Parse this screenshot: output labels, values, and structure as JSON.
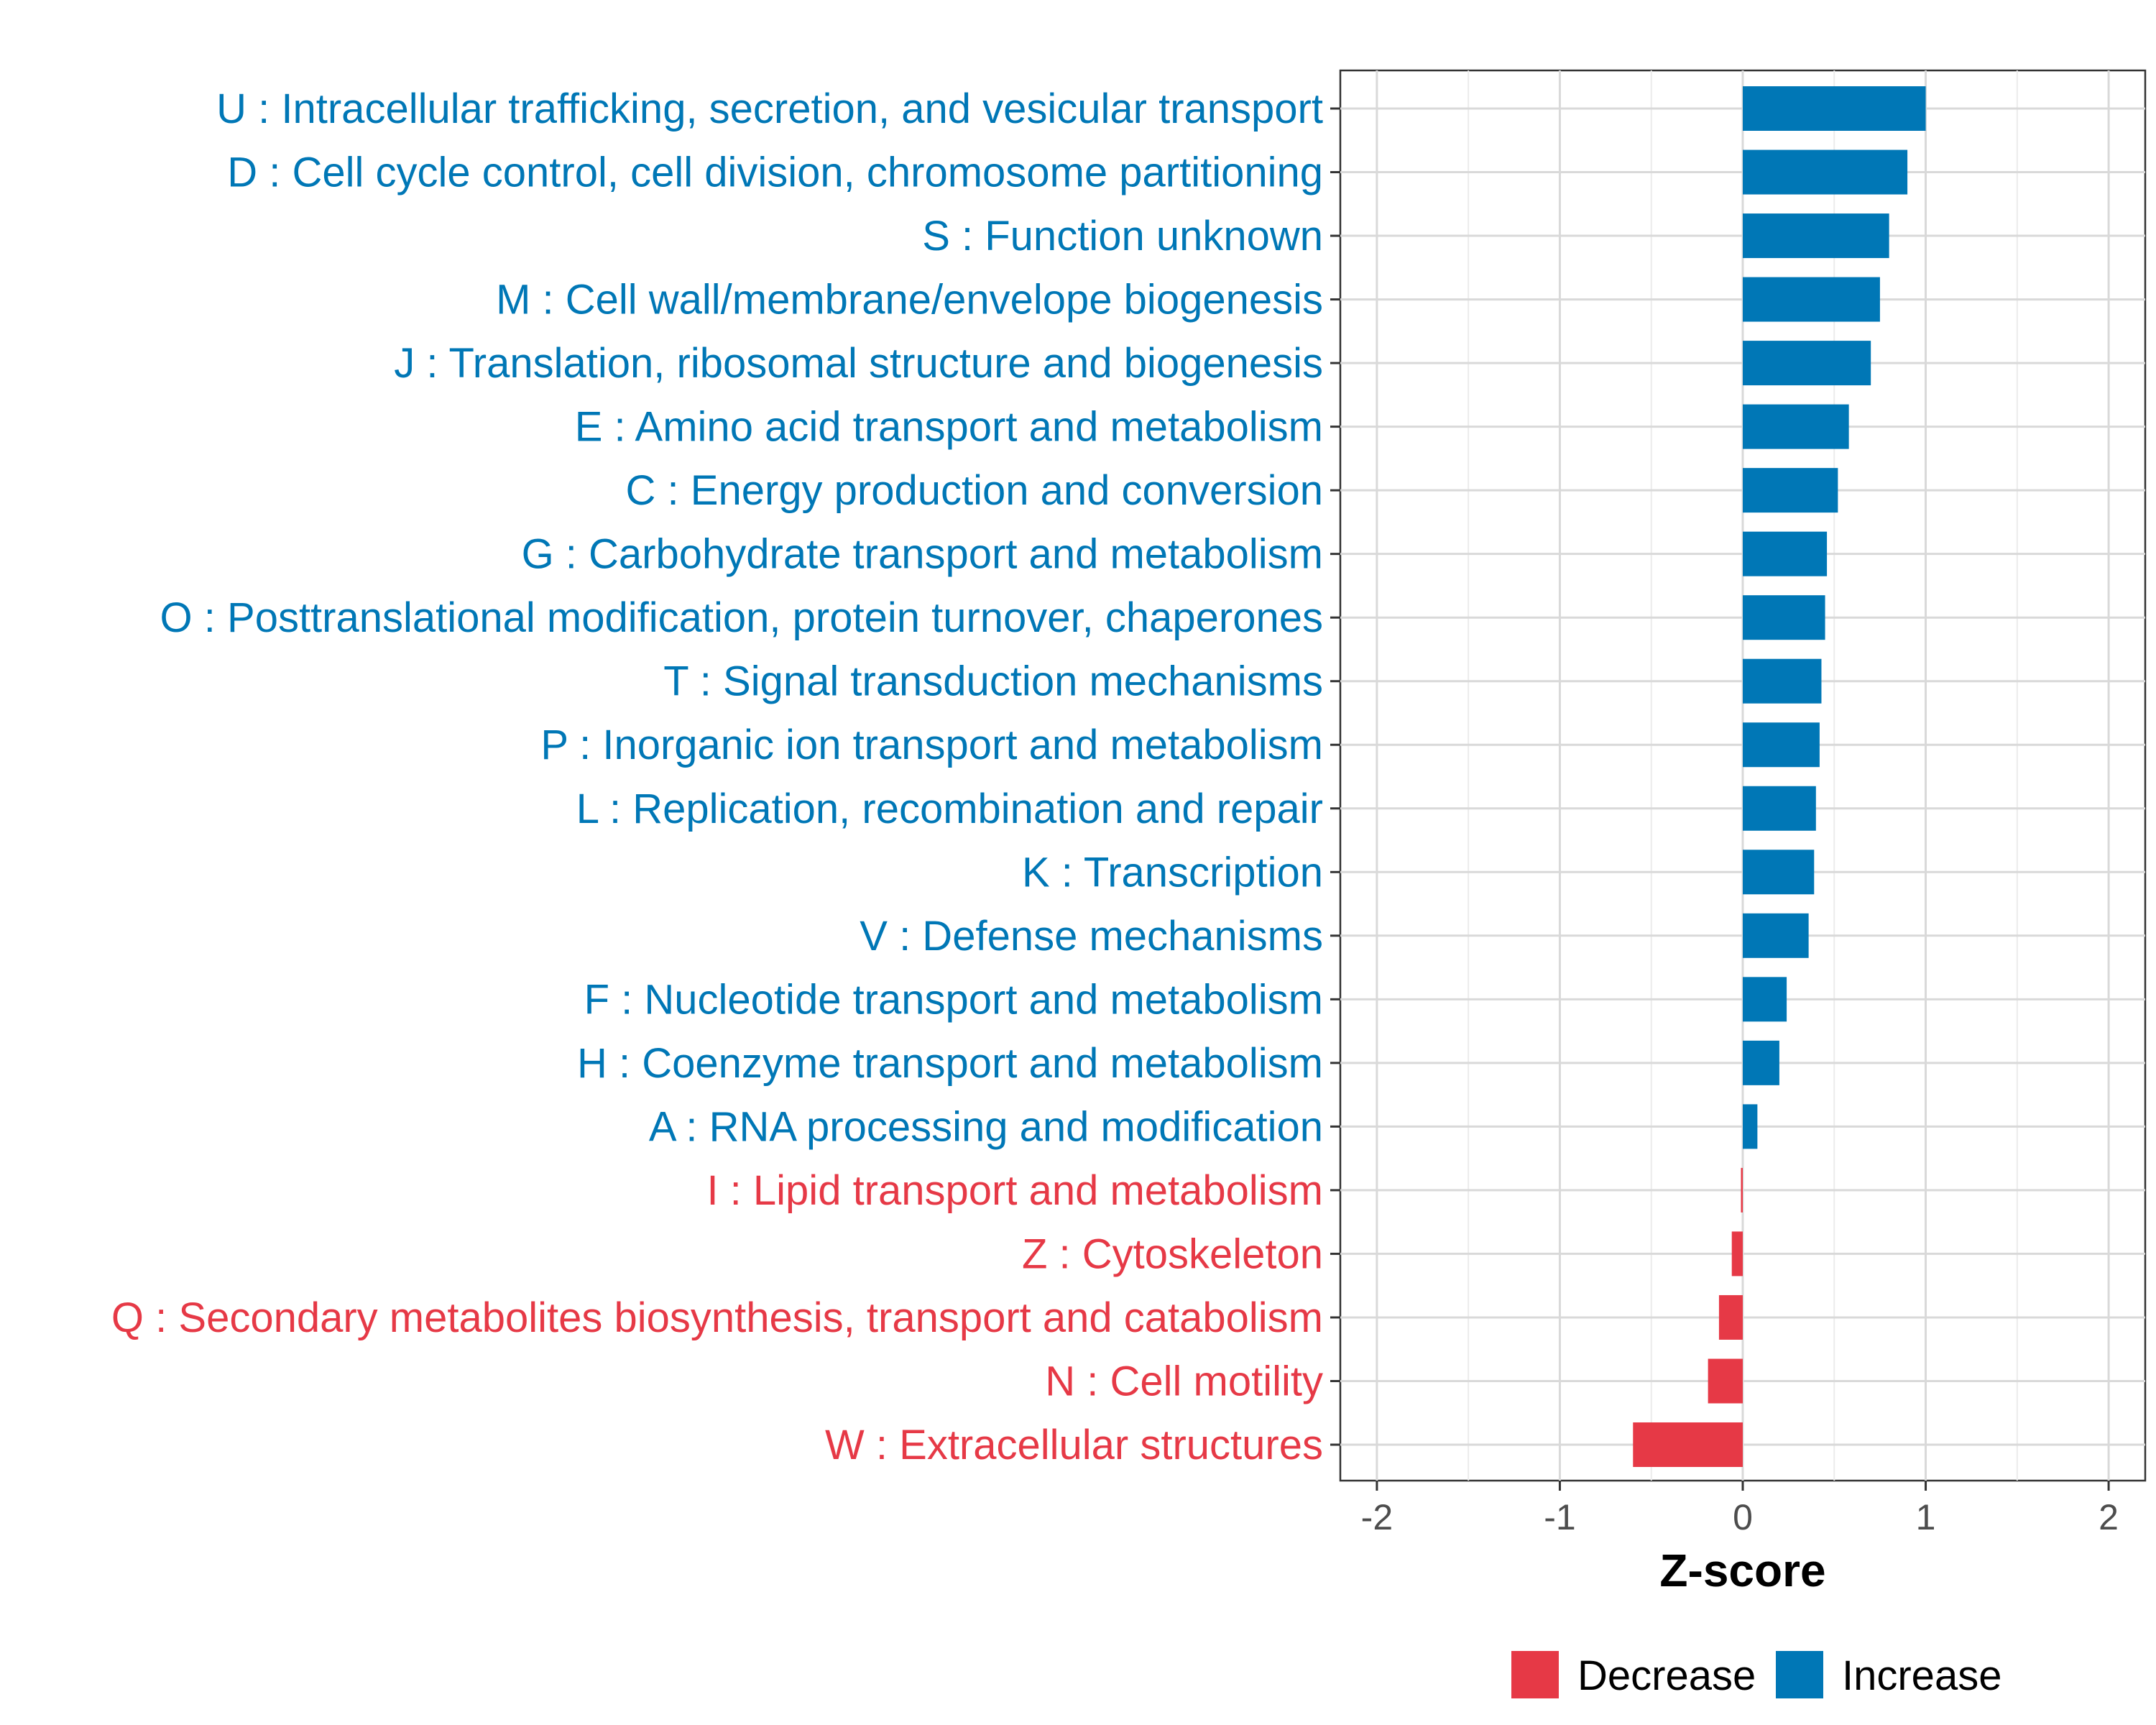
{
  "chart_data": {
    "type": "bar",
    "orientation": "horizontal",
    "xlabel": "Z-score",
    "xlim": [
      -2.2,
      2.2
    ],
    "xticks": [
      -2,
      -1,
      0,
      1,
      2
    ],
    "xtick_labels": [
      "-2",
      "-1",
      "0",
      "1",
      "2"
    ],
    "grid": true,
    "legend_position": "bottom",
    "colors": {
      "Decrease": "#E63946",
      "Increase": "#0077B6"
    },
    "legend": [
      {
        "label": "Decrease",
        "color": "#E63946"
      },
      {
        "label": "Increase",
        "color": "#0077B6"
      }
    ],
    "categories": [
      "U : Intracellular trafficking, secretion, and vesicular transport",
      "D : Cell cycle control, cell division, chromosome partitioning",
      "S : Function unknown",
      "M : Cell wall/membrane/envelope biogenesis",
      "J : Translation, ribosomal structure and biogenesis",
      "E : Amino acid transport and metabolism",
      "C : Energy production and conversion",
      "G : Carbohydrate transport and metabolism",
      "O : Posttranslational modification, protein turnover, chaperones",
      "T : Signal transduction mechanisms",
      "P : Inorganic ion transport and metabolism",
      "L : Replication, recombination and repair",
      "K : Transcription",
      "V : Defense mechanisms",
      "F : Nucleotide transport and metabolism",
      "H : Coenzyme transport and metabolism",
      "A : RNA processing and modification",
      "I : Lipid transport and metabolism",
      "Z : Cytoskeleton",
      "Q : Secondary metabolites biosynthesis, transport and catabolism",
      "N : Cell motility",
      "W : Extracellular structures"
    ],
    "values": [
      1.0,
      0.9,
      0.8,
      0.75,
      0.7,
      0.58,
      0.52,
      0.46,
      0.45,
      0.43,
      0.42,
      0.4,
      0.39,
      0.36,
      0.24,
      0.2,
      0.08,
      -0.01,
      -0.06,
      -0.13,
      -0.19,
      -0.6
    ],
    "groups": [
      "Increase",
      "Increase",
      "Increase",
      "Increase",
      "Increase",
      "Increase",
      "Increase",
      "Increase",
      "Increase",
      "Increase",
      "Increase",
      "Increase",
      "Increase",
      "Increase",
      "Increase",
      "Increase",
      "Increase",
      "Decrease",
      "Decrease",
      "Decrease",
      "Decrease",
      "Decrease"
    ]
  }
}
